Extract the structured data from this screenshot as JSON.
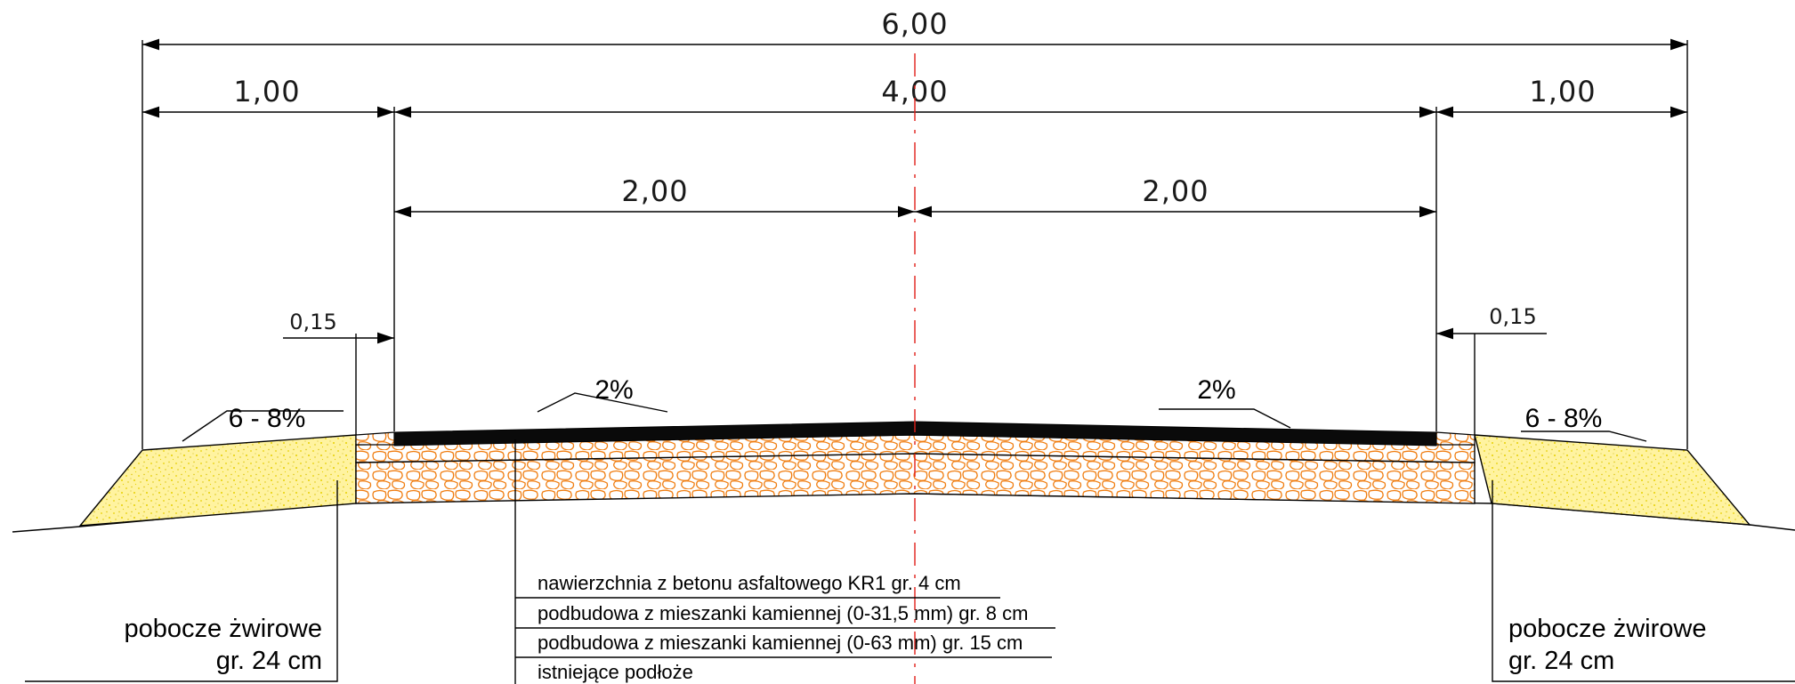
{
  "dimensions": {
    "total": "6,00",
    "left_shoulder": "1,00",
    "carriageway": "4,00",
    "right_shoulder": "1,00",
    "left_half": "2,00",
    "right_half": "2,00",
    "left_offset": "0,15",
    "right_offset": "0,15"
  },
  "slopes": {
    "left_shoulder": "6 - 8%",
    "left_lane": "2%",
    "right_lane": "2%",
    "right_shoulder": "6 - 8%"
  },
  "layers": [
    "nawierzchnia z betonu asfaltowego KR1 gr. 4 cm",
    "podbudowa z mieszanki kamiennej (0-31,5 mm) gr. 8 cm",
    "podbudowa z mieszanki kamiennej (0-63 mm) gr. 15 cm",
    "istniejące podłoże"
  ],
  "shoulder_labels": {
    "left_line1": "pobocze żwirowe",
    "left_line2": "gr. 24 cm",
    "right_line1": "pobocze żwirowe",
    "right_line2": "gr. 24 cm"
  },
  "colors": {
    "gravel_fill": "#fff3a0",
    "gravel_dots": "#e8d000",
    "stone_fill": "#ffffff",
    "stone_stroke": "#f07d10",
    "asphalt": "#0a0a0a",
    "axis": "#e0201a"
  }
}
